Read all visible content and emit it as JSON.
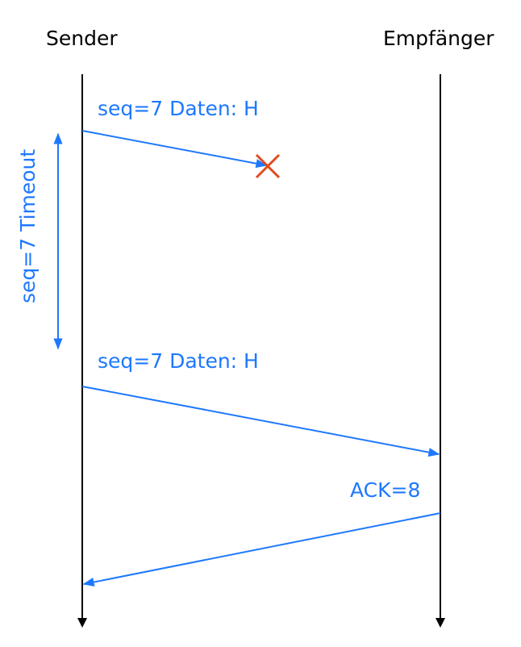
{
  "diagram": {
    "participants": {
      "sender": "Sender",
      "receiver": "Empfänger"
    },
    "messages": [
      {
        "label": "seq=7 Daten: H",
        "from": "Sender",
        "to": "Empfänger",
        "status": "lost"
      },
      {
        "label": "seq=7 Daten: H",
        "from": "Sender",
        "to": "Empfänger",
        "status": "delivered"
      },
      {
        "label": "ACK=8",
        "from": "Empfänger",
        "to": "Sender",
        "status": "delivered"
      }
    ],
    "timeout_label": "seq=7 Timeout",
    "colors": {
      "lifeline": "#000000",
      "message": "#1e78ff",
      "loss_marker": "#e04b1c"
    },
    "icons": {
      "loss_marker": "cross-icon"
    }
  }
}
